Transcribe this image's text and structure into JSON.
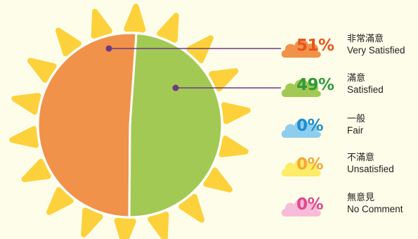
{
  "chart_data": {
    "type": "pie",
    "title": "",
    "slices": [
      {
        "label_zh": "非常滿意",
        "label_en": "Very Satisfied",
        "value": 51,
        "display": "51%",
        "color": "#f0924a",
        "pct_color": "#e9541c",
        "cloud_color": "#f0924a"
      },
      {
        "label_zh": "滿意",
        "label_en": "Satisfied",
        "value": 49,
        "display": "49%",
        "color": "#a2c954",
        "pct_color": "#2f9a3b",
        "cloud_color": "#a2c954"
      },
      {
        "label_zh": "一般",
        "label_en": "Fair",
        "value": 0,
        "display": "0%",
        "color": "#7dc5ea",
        "pct_color": "#1d8fcf",
        "cloud_color": "#8fcdee"
      },
      {
        "label_zh": "不滿意",
        "label_en": "Unsatisfied",
        "value": 0,
        "display": "0%",
        "color": "#fdea5a",
        "pct_color": "#f6a53a",
        "cloud_color": "#fdec66"
      },
      {
        "label_zh": "無意見",
        "label_en": "No Comment",
        "value": 0,
        "display": "0%",
        "color": "#f6b8d6",
        "pct_color": "#e0498f",
        "cloud_color": "#f7bcd9"
      }
    ],
    "legend_position": "right",
    "sun_ray_color": "#fcd13b",
    "leader_color": "#6b3a86"
  }
}
